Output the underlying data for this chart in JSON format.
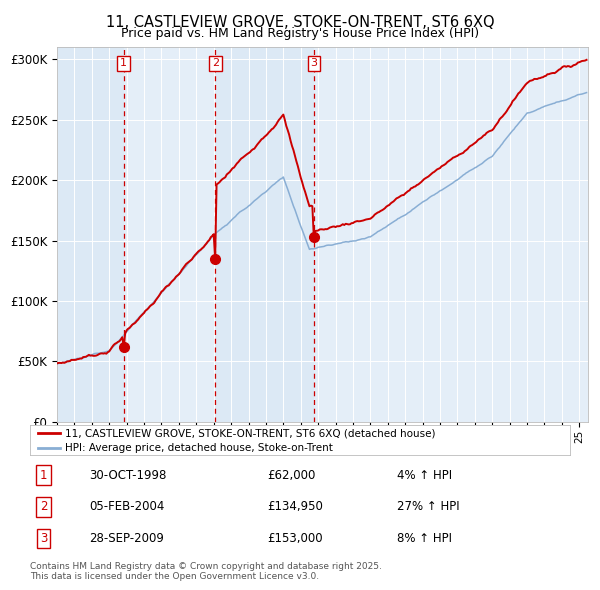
{
  "title": "11, CASTLEVIEW GROVE, STOKE-ON-TRENT, ST6 6XQ",
  "subtitle": "Price paid vs. HM Land Registry's House Price Index (HPI)",
  "background_color": "#ffffff",
  "plot_bg_color": "#dce9f5",
  "red_line_label": "11, CASTLEVIEW GROVE, STOKE-ON-TRENT, ST6 6XQ (detached house)",
  "blue_line_label": "HPI: Average price, detached house, Stoke-on-Trent",
  "footer": "Contains HM Land Registry data © Crown copyright and database right 2025.\nThis data is licensed under the Open Government Licence v3.0.",
  "purchases": [
    {
      "num": 1,
      "date": "30-OCT-1998",
      "price": 62000,
      "hpi_pct": "4%",
      "hpi_dir": "↑"
    },
    {
      "num": 2,
      "date": "05-FEB-2004",
      "price": 134950,
      "hpi_pct": "27%",
      "hpi_dir": "↑"
    },
    {
      "num": 3,
      "date": "28-SEP-2009",
      "price": 153000,
      "hpi_pct": "8%",
      "hpi_dir": "↑"
    }
  ],
  "purchase_years": [
    1998.83,
    2004.09,
    2009.75
  ],
  "purchase_prices": [
    62000,
    134950,
    153000
  ],
  "ylim": [
    0,
    310000
  ],
  "yticks": [
    0,
    50000,
    100000,
    150000,
    200000,
    250000,
    300000
  ],
  "ytick_labels": [
    "£0",
    "£50K",
    "£100K",
    "£150K",
    "£200K",
    "£250K",
    "£300K"
  ],
  "xlim_start": 1995.0,
  "xlim_end": 2025.5,
  "red_color": "#cc0000",
  "blue_color": "#89aed4",
  "vline_color": "#cc0000",
  "grid_color": "#ffffff",
  "marker_color": "#cc0000",
  "shade_colors": [
    "#dce9f5",
    "#e4eef8",
    "#dce9f5",
    "#e4eef8"
  ]
}
